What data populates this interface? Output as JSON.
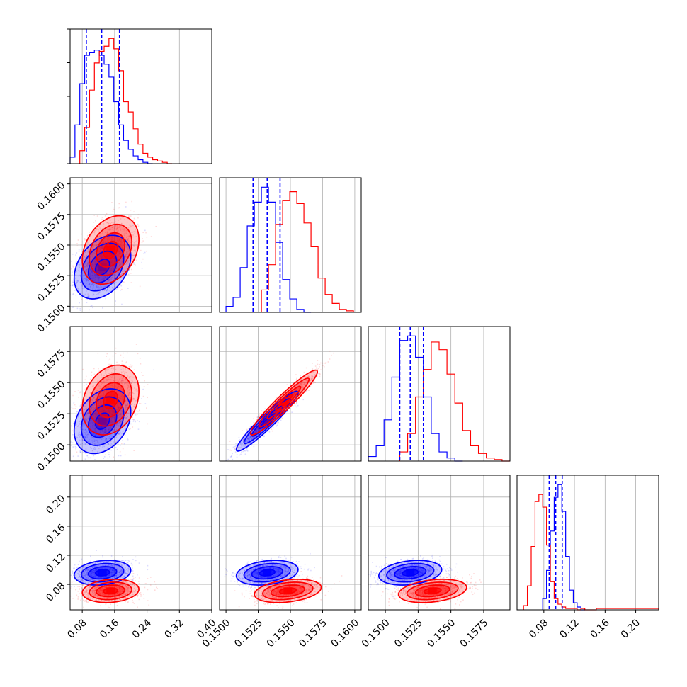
{
  "chart_data": {
    "type": "corner",
    "colors": {
      "red": "#ff0000",
      "blue": "#0000ff",
      "grid": "#b0b0b0",
      "axis": "#000000"
    },
    "grid": true,
    "parameters": [
      {
        "range": [
          0.05,
          0.4
        ],
        "ticks": [
          "0.08",
          "0.16",
          "0.24",
          "0.32",
          "0.40"
        ],
        "tick_values": [
          0.08,
          0.16,
          0.24,
          0.32,
          0.4
        ]
      },
      {
        "range": [
          0.1495,
          0.1605
        ],
        "ticks": [
          "0.1500",
          "0.1525",
          "0.1550",
          "0.1575",
          "0.1600"
        ],
        "tick_values": [
          0.15,
          0.1525,
          0.155,
          0.1575,
          0.16
        ]
      },
      {
        "range": [
          0.1487,
          0.1595
        ],
        "ticks": [
          "0.1500",
          "0.1525",
          "0.1550",
          "0.1575"
        ],
        "tick_values": [
          0.15,
          0.1525,
          0.155,
          0.1575
        ]
      },
      {
        "range": [
          0.045,
          0.23
        ],
        "ticks": [
          "0.08",
          "0.12",
          "0.16",
          "0.20"
        ],
        "tick_values": [
          0.08,
          0.12,
          0.16,
          0.2
        ]
      }
    ],
    "y_tick_rows": [
      {
        "param": 1,
        "ticks": [
          "0.1600",
          "0.1575",
          "0.1550",
          "0.1525",
          "0.1500"
        ]
      },
      {
        "param": 2,
        "ticks": [
          "0.1575",
          "0.1550",
          "0.1525",
          "0.1500"
        ]
      },
      {
        "param": 3,
        "ticks": [
          "0.20",
          "0.16",
          "0.12",
          "0.08"
        ]
      }
    ],
    "marginals": [
      {
        "param": 0,
        "blue": {
          "bin_edges": [
            0.05,
            0.062,
            0.074,
            0.086,
            0.098,
            0.11,
            0.122,
            0.134,
            0.146,
            0.158,
            0.17,
            0.182,
            0.194,
            0.206,
            0.218,
            0.23,
            0.242,
            0.254
          ],
          "counts": [
            5,
            30,
            62,
            84,
            86,
            88,
            84,
            77,
            67,
            48,
            30,
            18,
            11,
            6,
            3,
            1,
            0
          ]
        },
        "red": {
          "bin_edges": [
            0.074,
            0.086,
            0.098,
            0.11,
            0.122,
            0.134,
            0.146,
            0.158,
            0.17,
            0.182,
            0.194,
            0.206,
            0.218,
            0.23,
            0.242,
            0.254,
            0.266,
            0.278,
            0.29,
            0.302
          ],
          "counts": [
            10,
            28,
            57,
            78,
            87,
            91,
            97,
            89,
            72,
            48,
            40,
            27,
            15,
            8,
            5,
            3,
            2,
            1,
            0
          ]
        },
        "quantiles": [
          0.09,
          0.128,
          0.172
        ]
      },
      {
        "param": 1,
        "blue": {
          "bin_edges": [
            0.15,
            0.15055,
            0.1511,
            0.15165,
            0.1522,
            0.15275,
            0.1533,
            0.15385,
            0.1544,
            0.15495,
            0.1555,
            0.15605,
            0.1566
          ],
          "counts": [
            4,
            10,
            30,
            58,
            74,
            84,
            74,
            47,
            22,
            9,
            2,
            0
          ]
        },
        "red": {
          "bin_edges": [
            0.15275,
            0.1533,
            0.15385,
            0.1544,
            0.15495,
            0.1555,
            0.15605,
            0.1566,
            0.15715,
            0.1577,
            0.15825,
            0.1588,
            0.15935,
            0.1599
          ],
          "counts": [
            15,
            32,
            59,
            75,
            81,
            73,
            60,
            44,
            23,
            12,
            6,
            2,
            1
          ]
        },
        "quantiles": [
          0.1521,
          0.1532,
          0.1542
        ]
      },
      {
        "param": 2,
        "blue": {
          "bin_edges": [
            0.1487,
            0.1493,
            0.1499,
            0.1505,
            0.1511,
            0.1517,
            0.1523,
            0.1529,
            0.1535,
            0.1541,
            0.1547,
            0.1553,
            0.1559
          ],
          "counts": [
            3,
            10,
            27,
            55,
            79,
            82,
            68,
            42,
            18,
            6,
            2,
            0
          ]
        },
        "red": {
          "bin_edges": [
            0.1511,
            0.1517,
            0.1523,
            0.1529,
            0.1535,
            0.1541,
            0.1547,
            0.1553,
            0.1559,
            0.1565,
            0.1571,
            0.1577,
            0.1583,
            0.1589,
            0.1595
          ],
          "counts": [
            6,
            18,
            42,
            60,
            78,
            73,
            57,
            38,
            20,
            10,
            5,
            2,
            1,
            0
          ]
        },
        "quantiles": [
          0.1511,
          0.1519,
          0.1529
        ]
      },
      {
        "param": 3,
        "blue": {
          "bin_edges": [
            0.0785,
            0.0835,
            0.0885,
            0.0935,
            0.0985,
            0.1035,
            0.1085,
            0.1135,
            0.1185,
            0.1235,
            0.1285,
            0.1335
          ],
          "counts": [
            8,
            28,
            56,
            80,
            89,
            70,
            38,
            14,
            5,
            2,
            0
          ]
        },
        "red": {
          "bin_edges": [
            0.0535,
            0.0585,
            0.0635,
            0.0685,
            0.0735,
            0.0785,
            0.0835,
            0.0885,
            0.0935,
            0.0985,
            0.1035,
            0.1085,
            0.1135,
            0.1185,
            0.1235,
            0.1285,
            0.1335,
            0.1385,
            0.1435,
            0.1485,
            0.23
          ],
          "counts": [
            3,
            17,
            45,
            77,
            82,
            73,
            46,
            20,
            8,
            4,
            2,
            1,
            1,
            1,
            0,
            1,
            0,
            0,
            0,
            1
          ]
        },
        "quantiles": [
          0.087,
          0.0955,
          0.104
        ]
      }
    ],
    "joint": [
      {
        "x_param": 0,
        "y_param": 1,
        "blue": {
          "mean": [
            0.13,
            0.1532
          ],
          "sd": [
            0.035,
            0.0013
          ],
          "corr": 0.35
        },
        "red": {
          "mean": [
            0.15,
            0.1546
          ],
          "sd": [
            0.035,
            0.0014
          ],
          "corr": 0.3
        }
      },
      {
        "x_param": 0,
        "y_param": 2,
        "blue": {
          "mean": [
            0.13,
            0.1519
          ],
          "sd": [
            0.035,
            0.0013
          ],
          "corr": 0.3
        },
        "red": {
          "mean": [
            0.15,
            0.1536
          ],
          "sd": [
            0.035,
            0.0014
          ],
          "corr": 0.25
        }
      },
      {
        "x_param": 1,
        "y_param": 2,
        "blue": {
          "mean": [
            0.1532,
            0.1519
          ],
          "sd": [
            0.0012,
            0.0012
          ],
          "corr": 0.95
        },
        "red": {
          "mean": [
            0.1545,
            0.1534
          ],
          "sd": [
            0.0013,
            0.0013
          ],
          "corr": 0.95
        }
      },
      {
        "x_param": 0,
        "y_param": 3,
        "blue": {
          "mean": [
            0.13,
            0.096
          ],
          "sd": [
            0.035,
            0.0085
          ],
          "corr": 0.2
        },
        "red": {
          "mean": [
            0.15,
            0.071
          ],
          "sd": [
            0.035,
            0.008
          ],
          "corr": 0.15
        }
      },
      {
        "x_param": 1,
        "y_param": 3,
        "blue": {
          "mean": [
            0.1532,
            0.096
          ],
          "sd": [
            0.0012,
            0.0085
          ],
          "corr": 0.25
        },
        "red": {
          "mean": [
            0.1548,
            0.071
          ],
          "sd": [
            0.0013,
            0.008
          ],
          "corr": 0.3
        }
      },
      {
        "x_param": 2,
        "y_param": 3,
        "blue": {
          "mean": [
            0.1519,
            0.096
          ],
          "sd": [
            0.0012,
            0.0085
          ],
          "corr": 0.25
        },
        "red": {
          "mean": [
            0.1536,
            0.071
          ],
          "sd": [
            0.0013,
            0.008
          ],
          "corr": 0.3
        }
      }
    ],
    "contour_levels_sigma": [
      0.5,
      1.0,
      1.5,
      2.0
    ]
  }
}
